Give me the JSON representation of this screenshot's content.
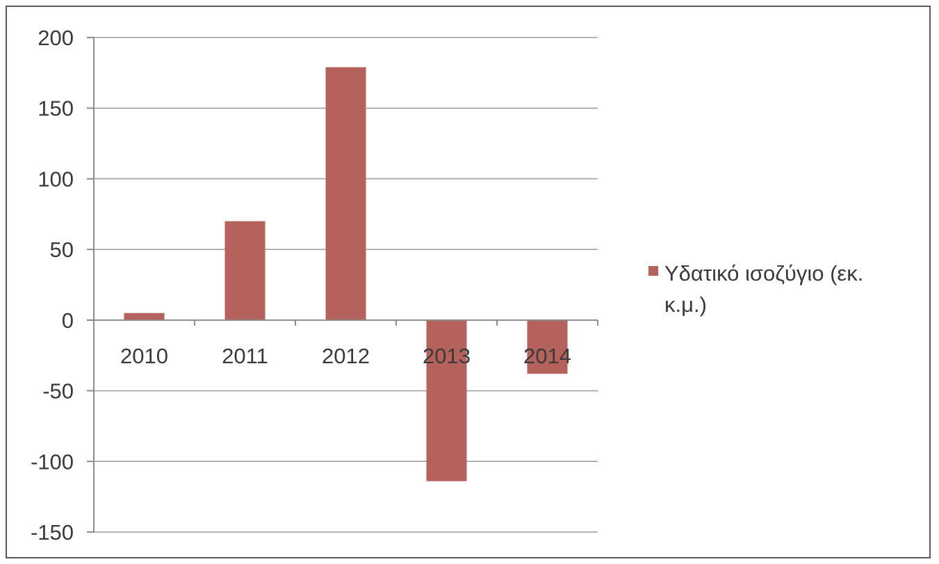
{
  "chart_data": {
    "type": "bar",
    "categories": [
      "2010",
      "2011",
      "2012",
      "2013",
      "2014"
    ],
    "series": [
      {
        "name": "Υδατικό ισοζύγιο (εκ. κ.μ.)",
        "values": [
          5,
          70,
          179,
          -114,
          -38
        ],
        "color": "#b5625d"
      }
    ],
    "ylim": [
      -150,
      200
    ],
    "yticks": [
      "200",
      "150",
      "100",
      "50",
      "0",
      "-50",
      "-100",
      "-150"
    ],
    "grid": true,
    "legend": {
      "position": "right",
      "lines": [
        "Υδατικό ισοζύγιο (εκ.",
        "κ.μ.)"
      ]
    },
    "title": "",
    "xlabel": "",
    "ylabel": ""
  }
}
